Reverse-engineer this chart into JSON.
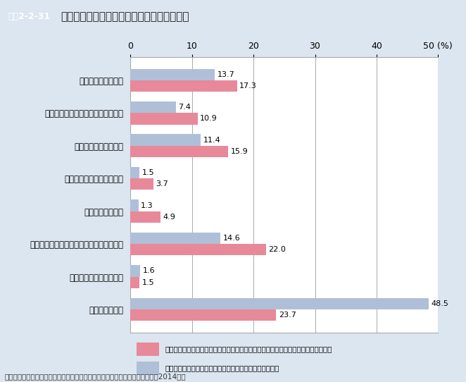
{
  "title": "健康に対する意識別の何も行っていない理由",
  "title_tag": "図表2-2-31",
  "categories": [
    "忙しくて時間がない",
    "健康なので特に何もする必要はない",
    "経済的なゆとりがない",
    "健康上の理由からやれない",
    "施設や機会がない",
    "何をどのようにやったらよいかわからない",
    "一緒にやる仲間がいない",
    "特に理由はない"
  ],
  "series1_label": "「病気にならないように気をつけているが、特に何かをやっているわけではない」人",
  "series2_label": "「特に意識しておらず、具体的には何も行っていない」人",
  "series1_values": [
    17.3,
    10.9,
    15.9,
    3.7,
    4.9,
    22.0,
    1.5,
    23.7
  ],
  "series2_values": [
    13.7,
    7.4,
    11.4,
    1.5,
    1.3,
    14.6,
    1.6,
    48.5
  ],
  "series1_color": "#e8899a",
  "series2_color": "#b0bfd8",
  "xlim": [
    0,
    50
  ],
  "xticks": [
    0,
    10,
    20,
    30,
    40,
    50
  ],
  "bar_height": 0.35,
  "background_color": "#dce6f0",
  "plot_background": "#ffffff",
  "footer": "資料：厚生労働省政策統括官付政策評価官室委託「健康意識に関する調査」（2014年）",
  "grid_color": "#aaaaaa",
  "title_box_color": "#5b9bd5",
  "title_box_text_color": "#ffffff"
}
